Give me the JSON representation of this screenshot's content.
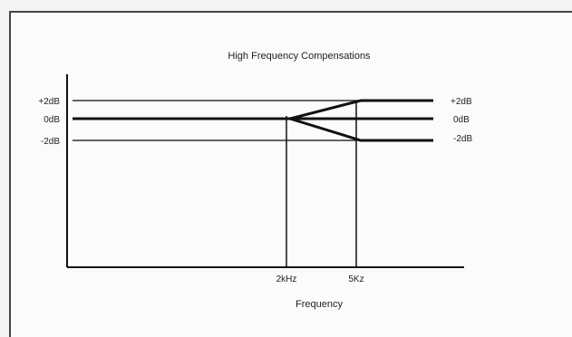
{
  "diagram": {
    "title": "High Frequency Compensations",
    "left_levels": [
      "+2dB",
      "0dB",
      "-2dB"
    ],
    "right_levels": [
      "+2dB",
      "0dB",
      "-2dB"
    ],
    "x_ticks": [
      "2kHz",
      "5Kz"
    ],
    "x_axis_label": "Frequency",
    "line_color": "#111111"
  }
}
